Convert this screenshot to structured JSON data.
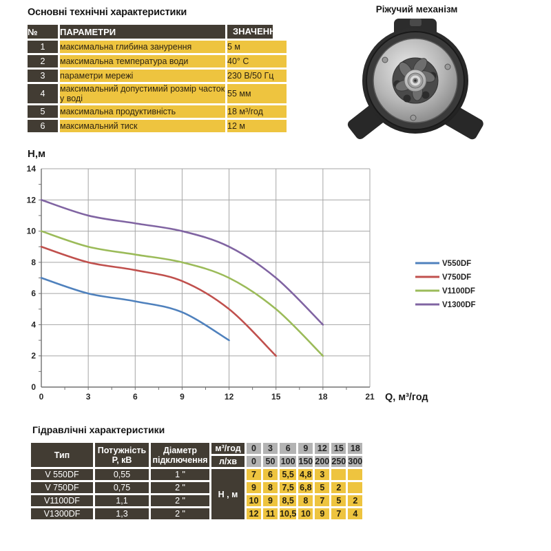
{
  "top_table": {
    "title": "Основні технічні характеристики",
    "headers": {
      "num": "№",
      "param": "ПАРАМЕТРИ",
      "value": "ЗНАЧЕННЯ"
    },
    "rows": [
      {
        "num": "1",
        "param": "максимальна глибина занурення",
        "value": "5 м"
      },
      {
        "num": "2",
        "param": "максимальна температура води",
        "value": "40° C"
      },
      {
        "num": "3",
        "param": "параметри мережі",
        "value": "230 В/50 Гц"
      },
      {
        "num": "4",
        "param": "максимальний допустимий розмір часток у воді",
        "value": "55 мм"
      },
      {
        "num": "5",
        "param": "максимальна продуктивність",
        "value": "18 м³/год"
      },
      {
        "num": "6",
        "param": "максимальний тиск",
        "value": "12 м"
      }
    ]
  },
  "cutter": {
    "label": "Ріжучий механізм"
  },
  "chart_data": {
    "type": "line",
    "title": "",
    "ylabel": "Н,м",
    "xlabel": "Q,  м³/год",
    "xlim": [
      0,
      21
    ],
    "ylim": [
      0,
      14
    ],
    "xticks": [
      0,
      3,
      6,
      9,
      12,
      15,
      18,
      21
    ],
    "yticks": [
      0,
      2,
      4,
      6,
      8,
      10,
      12,
      14
    ],
    "grid": true,
    "legend_position": "right",
    "x": [
      0,
      3,
      6,
      9,
      12,
      15,
      18
    ],
    "series": [
      {
        "name": "V550DF",
        "color": "#4f81bd",
        "values": [
          7,
          6,
          5.5,
          4.8,
          3,
          null,
          null
        ]
      },
      {
        "name": "V750DF",
        "color": "#c0504d",
        "values": [
          9,
          8,
          7.5,
          6.8,
          5,
          2,
          null
        ]
      },
      {
        "name": "V1100DF",
        "color": "#9bbb59",
        "values": [
          10,
          9,
          8.5,
          8,
          7,
          5,
          2
        ]
      },
      {
        "name": "V1300DF",
        "color": "#8064a2",
        "values": [
          12,
          11,
          10.5,
          10,
          9,
          7,
          4
        ]
      }
    ]
  },
  "hydraulic_table": {
    "title": "Гідравлічні характеристики",
    "left_headers": [
      "Тип",
      "Потужність Р, кВ",
      "Діаметр підключення"
    ],
    "left_rows": [
      [
        "V 550DF",
        "0,55",
        "1 \""
      ],
      [
        "V 750DF",
        "0,75",
        "2 \""
      ],
      [
        "V1100DF",
        "1,1",
        "2 \""
      ],
      [
        "V1300DF",
        "1,3",
        "2 \""
      ]
    ],
    "flow_label": "м³/год",
    "flow_values": [
      "0",
      "3",
      "6",
      "9",
      "12",
      "15",
      "18"
    ],
    "lmin_label": "л/хв",
    "lmin_values": [
      "0",
      "50",
      "100",
      "150",
      "200",
      "250",
      "300"
    ],
    "head_label": "Н , м",
    "head_rows": [
      [
        "7",
        "6",
        "5,5",
        "4,8",
        "3",
        "",
        ""
      ],
      [
        "9",
        "8",
        "7,5",
        "6,8",
        "5",
        "2",
        ""
      ],
      [
        "10",
        "9",
        "8,5",
        "8",
        "7",
        "5",
        "2"
      ],
      [
        "12",
        "11",
        "10,5",
        "10",
        "9",
        "7",
        "4"
      ]
    ],
    "colors": {
      "dark": "#423c33",
      "yellow": "#eec43f",
      "gray": "#b3b3b3"
    }
  }
}
